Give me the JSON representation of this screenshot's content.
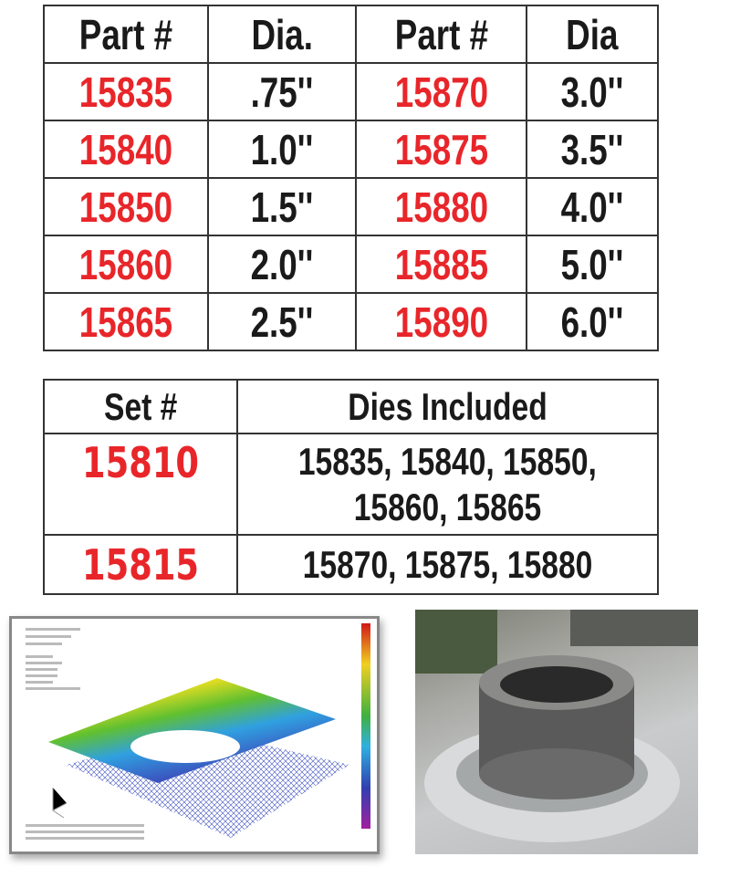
{
  "parts_table": {
    "headers": [
      "Part #",
      "Dia.",
      "Part #",
      "Dia"
    ],
    "rows": [
      [
        "15835",
        ".75''",
        "15870",
        "3.0''"
      ],
      [
        "15840",
        "1.0''",
        "15875",
        "3.5''"
      ],
      [
        "15850",
        "1.5''",
        "15880",
        "4.0''"
      ],
      [
        "15860",
        "2.0''",
        "15885",
        "5.0''"
      ],
      [
        "15865",
        "2.5''",
        "15890",
        "6.0''"
      ]
    ]
  },
  "sets_table": {
    "headers": [
      "Set #",
      "Dies Included"
    ],
    "rows": [
      {
        "set": "15810",
        "dies_line1": "15835, 15840, 15850,",
        "dies_line2": "15860, 15865"
      },
      {
        "set": "15815",
        "dies_line1": "15870, 15875, 15880",
        "dies_line2": ""
      }
    ]
  },
  "colors": {
    "part_number": "#e8262a",
    "text": "#1a1a1a"
  }
}
